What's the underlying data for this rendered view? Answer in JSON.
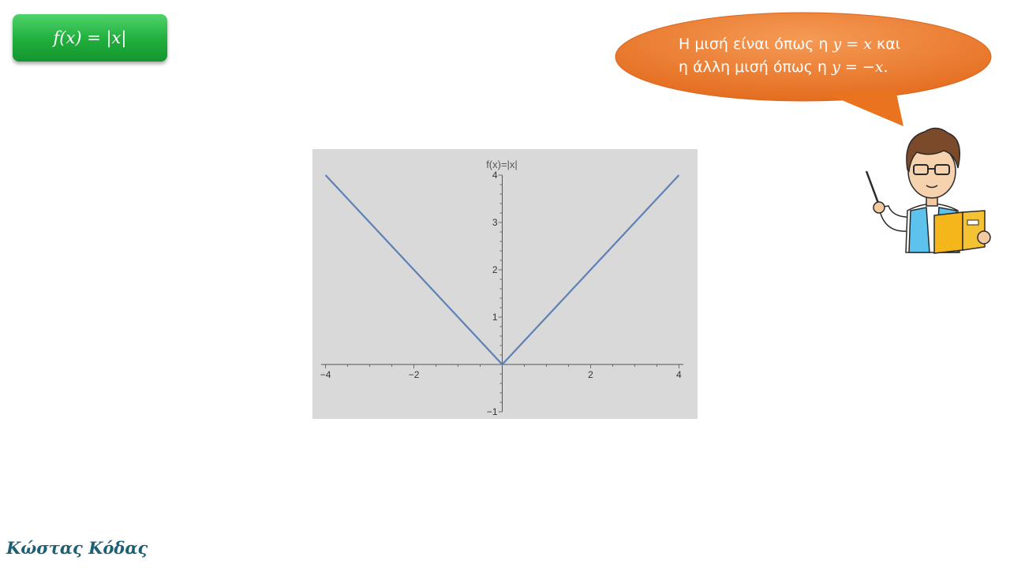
{
  "slide": {
    "title": "f(x) = |x|",
    "bubble": {
      "line1_text": "Η μισή είναι όπως η ",
      "line1_math": "y = x",
      "line1_tail": " και",
      "line2_text": "η άλλη μισή όπως η ",
      "line2_math": "y = −x.",
      "fill_color": "#ee7d31"
    },
    "signature": "Κώστας Κόδας",
    "accent_green": "#1fae3c"
  },
  "chart_data": {
    "type": "line",
    "title": "f(x)=|x|",
    "xlabel": "",
    "ylabel": "",
    "xlim": [
      -4.1,
      4.1
    ],
    "ylim": [
      -1,
      4
    ],
    "x_ticks": [
      -4,
      -2,
      2,
      4
    ],
    "x_tick_labels": [
      "−4",
      "−2",
      "2",
      "4"
    ],
    "y_ticks": [
      -1,
      1,
      2,
      3,
      4
    ],
    "y_tick_labels": [
      "−1",
      "1",
      "2",
      "3",
      "4"
    ],
    "grid": false,
    "background": "#d9d9d9",
    "series": [
      {
        "x": [
          -4,
          0,
          4
        ],
        "y": [
          4,
          0,
          4
        ],
        "color": "#5e81b5"
      }
    ]
  }
}
